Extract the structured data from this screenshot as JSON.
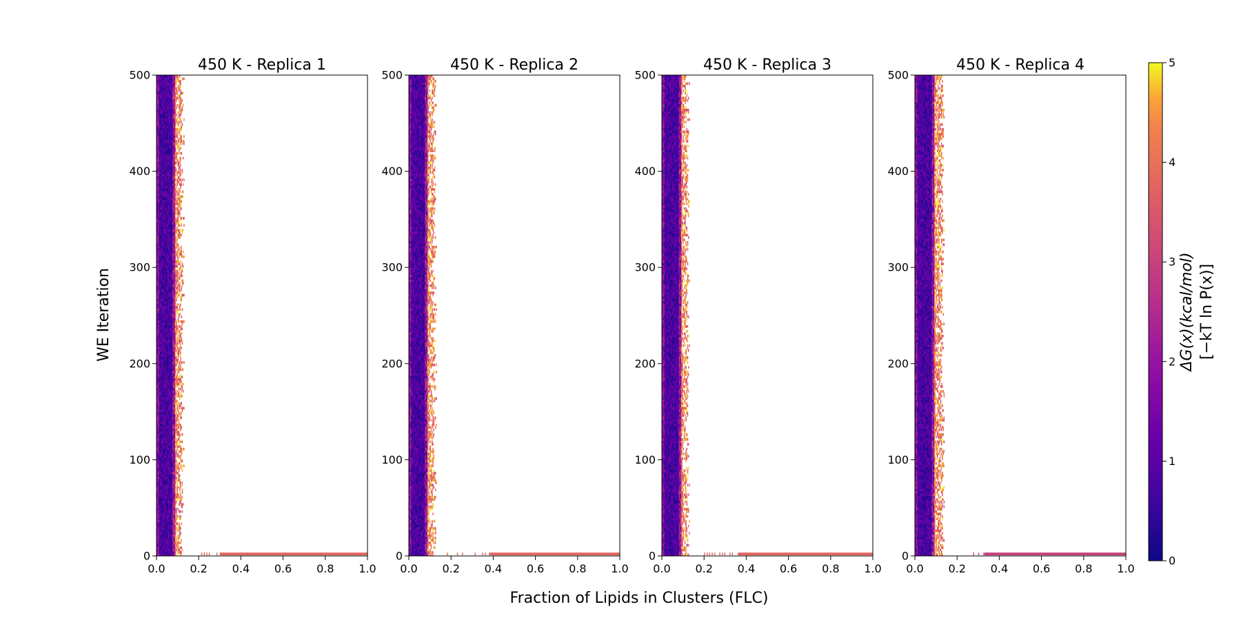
{
  "chart_data": {
    "type": "heatmap",
    "xlabel": "Fraction of Lipids in Clusters (FLC)",
    "ylabel": "WE Iteration",
    "xlim": [
      0.0,
      1.0
    ],
    "ylim": [
      0,
      500
    ],
    "x_ticks": [
      "0.0",
      "0.2",
      "0.4",
      "0.6",
      "0.8",
      "1.0"
    ],
    "y_ticks": [
      "0",
      "100",
      "200",
      "300",
      "400",
      "500"
    ],
    "colormap": "plasma",
    "colorbar": {
      "label_line1": "ΔG(x)(kcal/mol)",
      "label_line2": "[−kT ln P(x)]",
      "range": [
        0,
        5
      ],
      "ticks": [
        "0",
        "1",
        "2",
        "3",
        "4",
        "5"
      ]
    },
    "panels": [
      {
        "title": "450 K - Replica 1",
        "band": {
          "x_start": 0.0,
          "x_end": 0.12,
          "x_dense_end": 0.085
        },
        "initial_row": {
          "segments": [
            [
              0.2,
              0.3,
              3.8
            ],
            [
              0.3,
              1.0,
              3.8
            ]
          ]
        }
      },
      {
        "title": "450 K - Replica 2",
        "band": {
          "x_start": 0.0,
          "x_end": 0.12,
          "x_dense_end": 0.085
        },
        "initial_row": {
          "segments": [
            [
              0.18,
              0.38,
              3.8
            ],
            [
              0.38,
              1.0,
              3.8
            ]
          ]
        }
      },
      {
        "title": "450 K - Replica 3",
        "band": {
          "x_start": 0.0,
          "x_end": 0.12,
          "x_dense_end": 0.09
        },
        "initial_row": {
          "segments": [
            [
              0.2,
              0.36,
              3.8
            ],
            [
              0.36,
              1.0,
              3.8
            ]
          ]
        }
      },
      {
        "title": "450 K - Replica 4",
        "band": {
          "x_start": 0.0,
          "x_end": 0.13,
          "x_dense_end": 0.09
        },
        "initial_row": {
          "segments": [
            [
              0.24,
              0.33,
              3.2
            ],
            [
              0.33,
              1.0,
              3.0
            ]
          ]
        }
      }
    ]
  }
}
